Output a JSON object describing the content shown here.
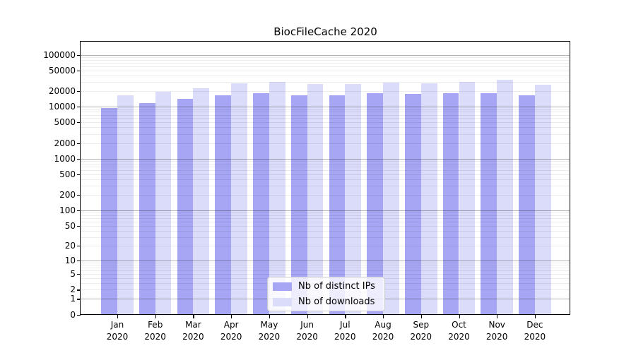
{
  "chart_data": {
    "type": "bar",
    "title": "BiocFileCache 2020",
    "categories": [
      "Jan",
      "Feb",
      "Mar",
      "Apr",
      "May",
      "Jun",
      "Jul",
      "Aug",
      "Sep",
      "Oct",
      "Nov",
      "Dec"
    ],
    "category_year": "2020",
    "series": [
      {
        "name": "Nb of distinct IPs",
        "color": "#a6a6f4",
        "values": [
          9500,
          11600,
          14300,
          16800,
          18400,
          16700,
          16500,
          18000,
          17500,
          18100,
          18100,
          16400
        ]
      },
      {
        "name": "Nb of downloads",
        "color": "#dbdbfa",
        "values": [
          16800,
          19600,
          23000,
          28200,
          30500,
          27700,
          27700,
          29100,
          27900,
          29800,
          33000,
          26300
        ]
      }
    ],
    "y_scale": "log1p",
    "y_ticks": [
      100000,
      50000,
      20000,
      10000,
      5000,
      2000,
      1000,
      500,
      200,
      100,
      50,
      20,
      10,
      5,
      2,
      1,
      0
    ],
    "ylim": [
      0,
      178000
    ],
    "xlabel": "",
    "ylabel": "",
    "grid": true,
    "legend_position": "lower-center"
  }
}
